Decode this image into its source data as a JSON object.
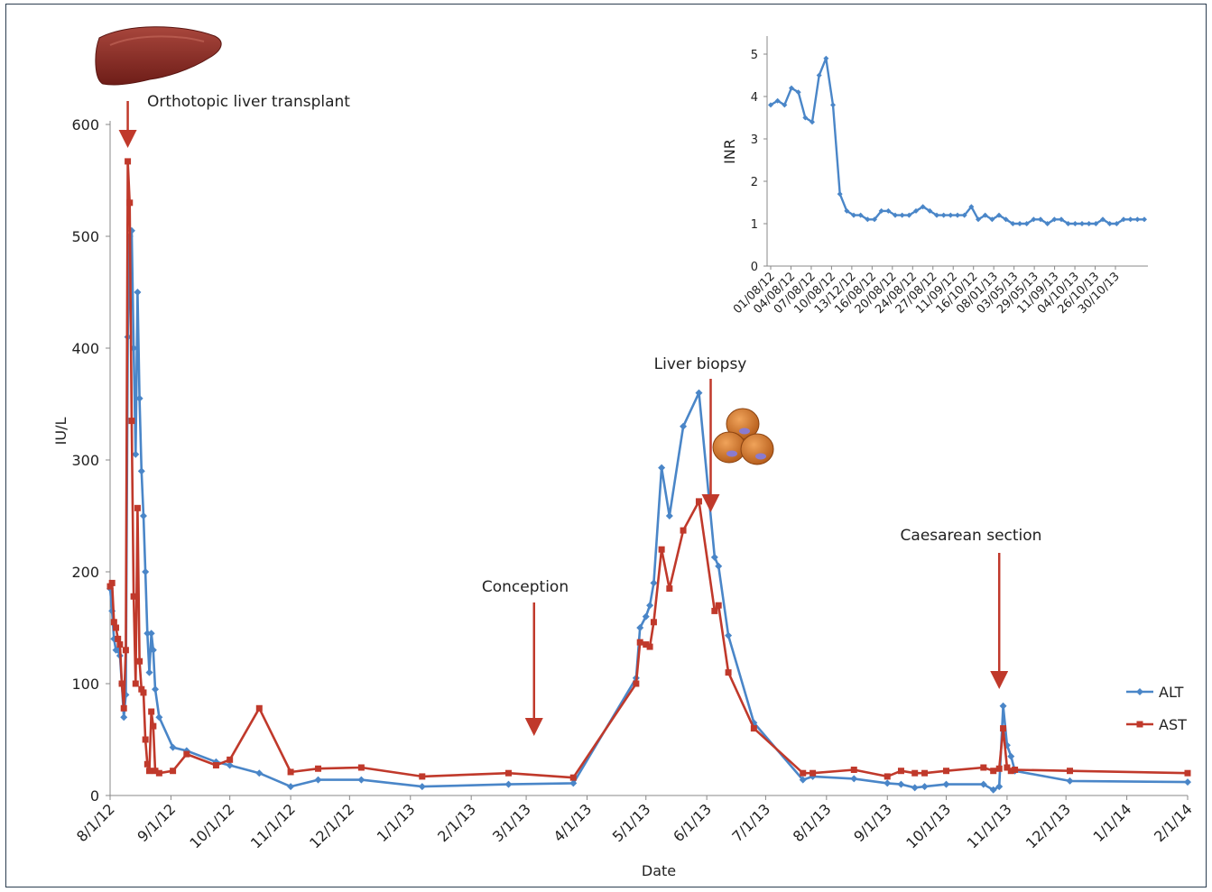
{
  "chart_data": [
    {
      "type": "line",
      "xlabel": "Date",
      "ylabel": "IU/L",
      "ylim": [
        0,
        600
      ],
      "yticks": [
        0,
        100,
        200,
        300,
        400,
        500,
        600
      ],
      "x_tick_labels": [
        "8/1/12",
        "9/1/12",
        "10/1/12",
        "11/1/12",
        "12/1/12",
        "1/1/13",
        "2/1/13",
        "3/1/13",
        "4/1/13",
        "5/1/13",
        "6/1/13",
        "7/1/13",
        "8/1/13",
        "9/1/13",
        "10/1/13",
        "11/1/13",
        "12/1/13",
        "1/1/14",
        "2/1/14"
      ],
      "xlim": [
        "2012-08-01",
        "2014-02-01"
      ],
      "grid": false,
      "legend": "right",
      "series": [
        {
          "name": "ALT",
          "color": "#4a86c8",
          "marker": "diamond",
          "points": [
            [
              "2012-08-01",
              185
            ],
            [
              "2012-08-02",
              165
            ],
            [
              "2012-08-03",
              140
            ],
            [
              "2012-08-04",
              130
            ],
            [
              "2012-08-05",
              130
            ],
            [
              "2012-08-06",
              125
            ],
            [
              "2012-08-07",
              100
            ],
            [
              "2012-08-08",
              70
            ],
            [
              "2012-08-09",
              90
            ],
            [
              "2012-08-10",
              410
            ],
            [
              "2012-08-11",
              500
            ],
            [
              "2012-08-12",
              505
            ],
            [
              "2012-08-13",
              400
            ],
            [
              "2012-08-14",
              305
            ],
            [
              "2012-08-15",
              450
            ],
            [
              "2012-08-16",
              355
            ],
            [
              "2012-08-17",
              290
            ],
            [
              "2012-08-18",
              250
            ],
            [
              "2012-08-19",
              200
            ],
            [
              "2012-08-20",
              145
            ],
            [
              "2012-08-21",
              110
            ],
            [
              "2012-08-22",
              145
            ],
            [
              "2012-08-23",
              130
            ],
            [
              "2012-08-24",
              95
            ],
            [
              "2012-08-26",
              70
            ],
            [
              "2012-09-02",
              43
            ],
            [
              "2012-09-09",
              40
            ],
            [
              "2012-09-24",
              30
            ],
            [
              "2012-10-01",
              27
            ],
            [
              "2012-10-16",
              20
            ],
            [
              "2012-11-01",
              8
            ],
            [
              "2012-11-15",
              14
            ],
            [
              "2012-12-07",
              14
            ],
            [
              "2013-01-07",
              8
            ],
            [
              "2013-02-20",
              10
            ],
            [
              "2013-03-25",
              11
            ],
            [
              "2013-04-26",
              105
            ],
            [
              "2013-04-28",
              150
            ],
            [
              "2013-05-01",
              160
            ],
            [
              "2013-05-03",
              170
            ],
            [
              "2013-05-05",
              190
            ],
            [
              "2013-05-09",
              293
            ],
            [
              "2013-05-13",
              250
            ],
            [
              "2013-05-20",
              330
            ],
            [
              "2013-05-28",
              360
            ],
            [
              "2013-06-05",
              213
            ],
            [
              "2013-06-07",
              205
            ],
            [
              "2013-06-12",
              143
            ],
            [
              "2013-06-25",
              65
            ],
            [
              "2013-07-20",
              14
            ],
            [
              "2013-07-25",
              17
            ],
            [
              "2013-08-15",
              15
            ],
            [
              "2013-09-01",
              11
            ],
            [
              "2013-09-08",
              10
            ],
            [
              "2013-09-15",
              7
            ],
            [
              "2013-09-20",
              8
            ],
            [
              "2013-10-01",
              10
            ],
            [
              "2013-10-20",
              10
            ],
            [
              "2013-10-25",
              5
            ],
            [
              "2013-10-28",
              8
            ],
            [
              "2013-10-30",
              80
            ],
            [
              "2013-11-01",
              45
            ],
            [
              "2013-11-03",
              35
            ],
            [
              "2013-11-05",
              22
            ],
            [
              "2013-12-03",
              13
            ],
            [
              "2014-02-01",
              12
            ]
          ]
        },
        {
          "name": "AST",
          "color": "#c0392b",
          "marker": "square",
          "points": [
            [
              "2012-08-01",
              187
            ],
            [
              "2012-08-02",
              190
            ],
            [
              "2012-08-03",
              155
            ],
            [
              "2012-08-04",
              150
            ],
            [
              "2012-08-05",
              140
            ],
            [
              "2012-08-06",
              135
            ],
            [
              "2012-08-07",
              100
            ],
            [
              "2012-08-08",
              78
            ],
            [
              "2012-08-09",
              130
            ],
            [
              "2012-08-10",
              567
            ],
            [
              "2012-08-11",
              530
            ],
            [
              "2012-08-12",
              335
            ],
            [
              "2012-08-13",
              178
            ],
            [
              "2012-08-14",
              100
            ],
            [
              "2012-08-15",
              257
            ],
            [
              "2012-08-16",
              120
            ],
            [
              "2012-08-17",
              95
            ],
            [
              "2012-08-18",
              92
            ],
            [
              "2012-08-19",
              50
            ],
            [
              "2012-08-20",
              28
            ],
            [
              "2012-08-21",
              22
            ],
            [
              "2012-08-22",
              75
            ],
            [
              "2012-08-23",
              62
            ],
            [
              "2012-08-24",
              22
            ],
            [
              "2012-08-26",
              20
            ],
            [
              "2012-09-02",
              22
            ],
            [
              "2012-09-09",
              37
            ],
            [
              "2012-09-24",
              27
            ],
            [
              "2012-10-01",
              32
            ],
            [
              "2012-10-16",
              78
            ],
            [
              "2012-11-01",
              21
            ],
            [
              "2012-11-15",
              24
            ],
            [
              "2012-12-07",
              25
            ],
            [
              "2013-01-07",
              17
            ],
            [
              "2013-02-20",
              20
            ],
            [
              "2013-03-25",
              16
            ],
            [
              "2013-04-26",
              100
            ],
            [
              "2013-04-28",
              137
            ],
            [
              "2013-05-01",
              135
            ],
            [
              "2013-05-03",
              133
            ],
            [
              "2013-05-05",
              155
            ],
            [
              "2013-05-09",
              220
            ],
            [
              "2013-05-13",
              185
            ],
            [
              "2013-05-20",
              237
            ],
            [
              "2013-05-28",
              263
            ],
            [
              "2013-06-05",
              165
            ],
            [
              "2013-06-07",
              170
            ],
            [
              "2013-06-12",
              110
            ],
            [
              "2013-06-25",
              60
            ],
            [
              "2013-07-20",
              20
            ],
            [
              "2013-07-25",
              20
            ],
            [
              "2013-08-15",
              23
            ],
            [
              "2013-09-01",
              17
            ],
            [
              "2013-09-08",
              22
            ],
            [
              "2013-09-15",
              20
            ],
            [
              "2013-09-20",
              20
            ],
            [
              "2013-10-01",
              22
            ],
            [
              "2013-10-20",
              25
            ],
            [
              "2013-10-25",
              22
            ],
            [
              "2013-10-28",
              24
            ],
            [
              "2013-10-30",
              60
            ],
            [
              "2013-11-01",
              25
            ],
            [
              "2013-11-03",
              22
            ],
            [
              "2013-11-05",
              23
            ],
            [
              "2013-12-03",
              22
            ],
            [
              "2014-02-01",
              20
            ]
          ]
        }
      ],
      "annotations": [
        {
          "text": "Orthotopic liver transplant",
          "x": "2012-08-10",
          "icon": "liver-icon"
        },
        {
          "text": "Conception",
          "x": "2013-03-05"
        },
        {
          "text": "Liver biopsy",
          "x": "2013-06-03",
          "icon": "hepatocytes-icon"
        },
        {
          "text": "Caesarean section",
          "x": "2013-10-28"
        }
      ]
    },
    {
      "type": "line",
      "ylabel": "INR",
      "ylim": [
        0,
        5
      ],
      "yticks": [
        0,
        1,
        2,
        3,
        4,
        5
      ],
      "x_tick_labels": [
        "01/08/12",
        "04/08/12",
        "07/08/12",
        "10/08/12",
        "13/12/12",
        "16/08/12",
        "20/08/12",
        "24/08/12",
        "27/08/12",
        "11/09/12",
        "16/10/12",
        "08/01/13",
        "03/05/13",
        "29/05/13",
        "11/09/13",
        "04/10/13",
        "26/10/13",
        "30/10/13"
      ],
      "series": [
        {
          "name": "INR",
          "color": "#4a86c8",
          "marker": "diamond",
          "values": [
            3.8,
            3.9,
            3.8,
            4.2,
            4.1,
            3.5,
            3.4,
            4.5,
            4.9,
            3.8,
            1.7,
            1.3,
            1.2,
            1.2,
            1.1,
            1.1,
            1.3,
            1.3,
            1.2,
            1.2,
            1.2,
            1.3,
            1.4,
            1.3,
            1.2,
            1.2,
            1.2,
            1.2,
            1.2,
            1.4,
            1.1,
            1.2,
            1.1,
            1.2,
            1.1,
            1.0,
            1.0,
            1.0,
            1.1,
            1.1,
            1.0,
            1.1,
            1.1,
            1.0,
            1.0,
            1.0,
            1.0,
            1.0,
            1.1,
            1.0,
            1.0,
            1.1,
            1.1,
            1.1,
            1.1
          ]
        }
      ]
    }
  ]
}
